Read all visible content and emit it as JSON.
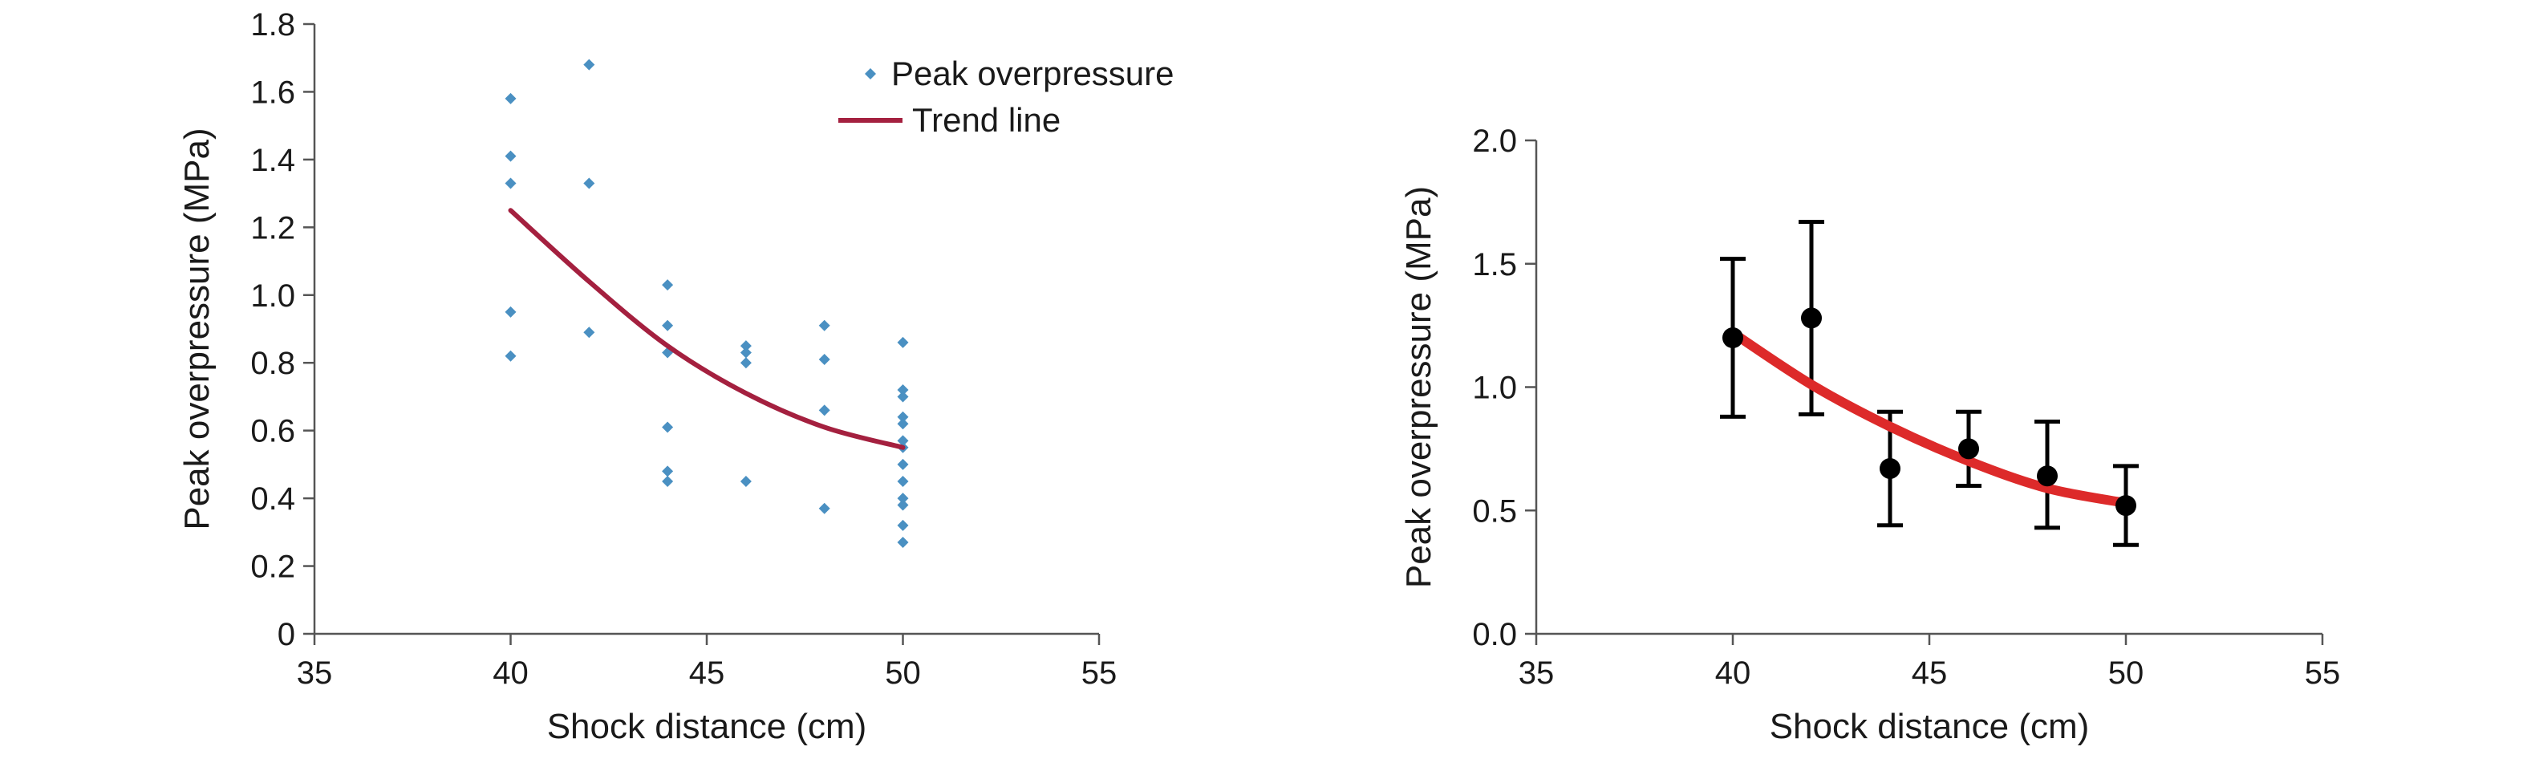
{
  "chart_data": [
    {
      "type": "scatter",
      "xlabel": "Shock distance (cm)",
      "ylabel": "Peak overpressure (MPa)",
      "xlim": [
        35,
        55
      ],
      "ylim": [
        0,
        1.8
      ],
      "xticks": [
        35,
        40,
        45,
        50,
        55
      ],
      "yticks": [
        0,
        0.2,
        0.4,
        0.6,
        0.8,
        1.0,
        1.2,
        1.4,
        1.6,
        1.8
      ],
      "ytick_labels": [
        "0",
        "0.2",
        "0.4",
        "0.6",
        "0.8",
        "1.0",
        "1.2",
        "1.4",
        "1.6",
        "1.8"
      ],
      "grid": false,
      "legend_position": "top-right",
      "legend": [
        "Peak overpressure",
        "Trend line"
      ],
      "series": [
        {
          "name": "Peak overpressure",
          "type": "scatter",
          "color": "#4a90c2",
          "points": [
            [
              40,
              1.58
            ],
            [
              40,
              1.41
            ],
            [
              40,
              1.33
            ],
            [
              40,
              0.95
            ],
            [
              40,
              0.82
            ],
            [
              42,
              1.68
            ],
            [
              42,
              1.33
            ],
            [
              42,
              0.89
            ],
            [
              44,
              1.03
            ],
            [
              44,
              0.91
            ],
            [
              44,
              0.83
            ],
            [
              44,
              0.61
            ],
            [
              44,
              0.48
            ],
            [
              44,
              0.45
            ],
            [
              46,
              0.85
            ],
            [
              46,
              0.83
            ],
            [
              46,
              0.8
            ],
            [
              46,
              0.45
            ],
            [
              48,
              0.91
            ],
            [
              48,
              0.81
            ],
            [
              48,
              0.66
            ],
            [
              48,
              0.37
            ],
            [
              50,
              0.86
            ],
            [
              50,
              0.72
            ],
            [
              50,
              0.7
            ],
            [
              50,
              0.64
            ],
            [
              50,
              0.62
            ],
            [
              50,
              0.57
            ],
            [
              50,
              0.55
            ],
            [
              50,
              0.5
            ],
            [
              50,
              0.45
            ],
            [
              50,
              0.4
            ],
            [
              50,
              0.38
            ],
            [
              50,
              0.32
            ],
            [
              50,
              0.27
            ]
          ]
        },
        {
          "name": "Trend line",
          "type": "line",
          "color": "#a4203f",
          "points": [
            [
              40,
              1.25
            ],
            [
              42,
              1.04
            ],
            [
              44,
              0.85
            ],
            [
              46,
              0.71
            ],
            [
              48,
              0.61
            ],
            [
              50,
              0.55
            ]
          ]
        }
      ]
    },
    {
      "type": "scatter",
      "xlabel": "Shock distance (cm)",
      "ylabel": "Peak overpressure (MPa)",
      "xlim": [
        35,
        55
      ],
      "ylim": [
        0,
        2.0
      ],
      "xticks": [
        35,
        40,
        45,
        50,
        55
      ],
      "yticks": [
        0,
        0.5,
        1.0,
        1.5,
        2.0
      ],
      "ytick_labels": [
        "0.0",
        "0.5",
        "1.0",
        "1.5",
        "2.0"
      ],
      "grid": false,
      "series": [
        {
          "type": "scatter-errorbar",
          "color": "#000000",
          "points": [
            {
              "x": 40,
              "y": 1.2,
              "err_low": 0.88,
              "err_high": 1.52
            },
            {
              "x": 42,
              "y": 1.28,
              "err_low": 0.89,
              "err_high": 1.67
            },
            {
              "x": 44,
              "y": 0.67,
              "err_low": 0.44,
              "err_high": 0.9
            },
            {
              "x": 46,
              "y": 0.75,
              "err_low": 0.6,
              "err_high": 0.9
            },
            {
              "x": 48,
              "y": 0.64,
              "err_low": 0.43,
              "err_high": 0.86
            },
            {
              "x": 50,
              "y": 0.52,
              "err_low": 0.36,
              "err_high": 0.68
            }
          ]
        },
        {
          "type": "line",
          "color": "#dd2a2a",
          "points": [
            [
              40,
              1.22
            ],
            [
              42,
              1.01
            ],
            [
              44,
              0.84
            ],
            [
              46,
              0.7
            ],
            [
              48,
              0.59
            ],
            [
              50,
              0.53
            ]
          ]
        }
      ]
    }
  ]
}
